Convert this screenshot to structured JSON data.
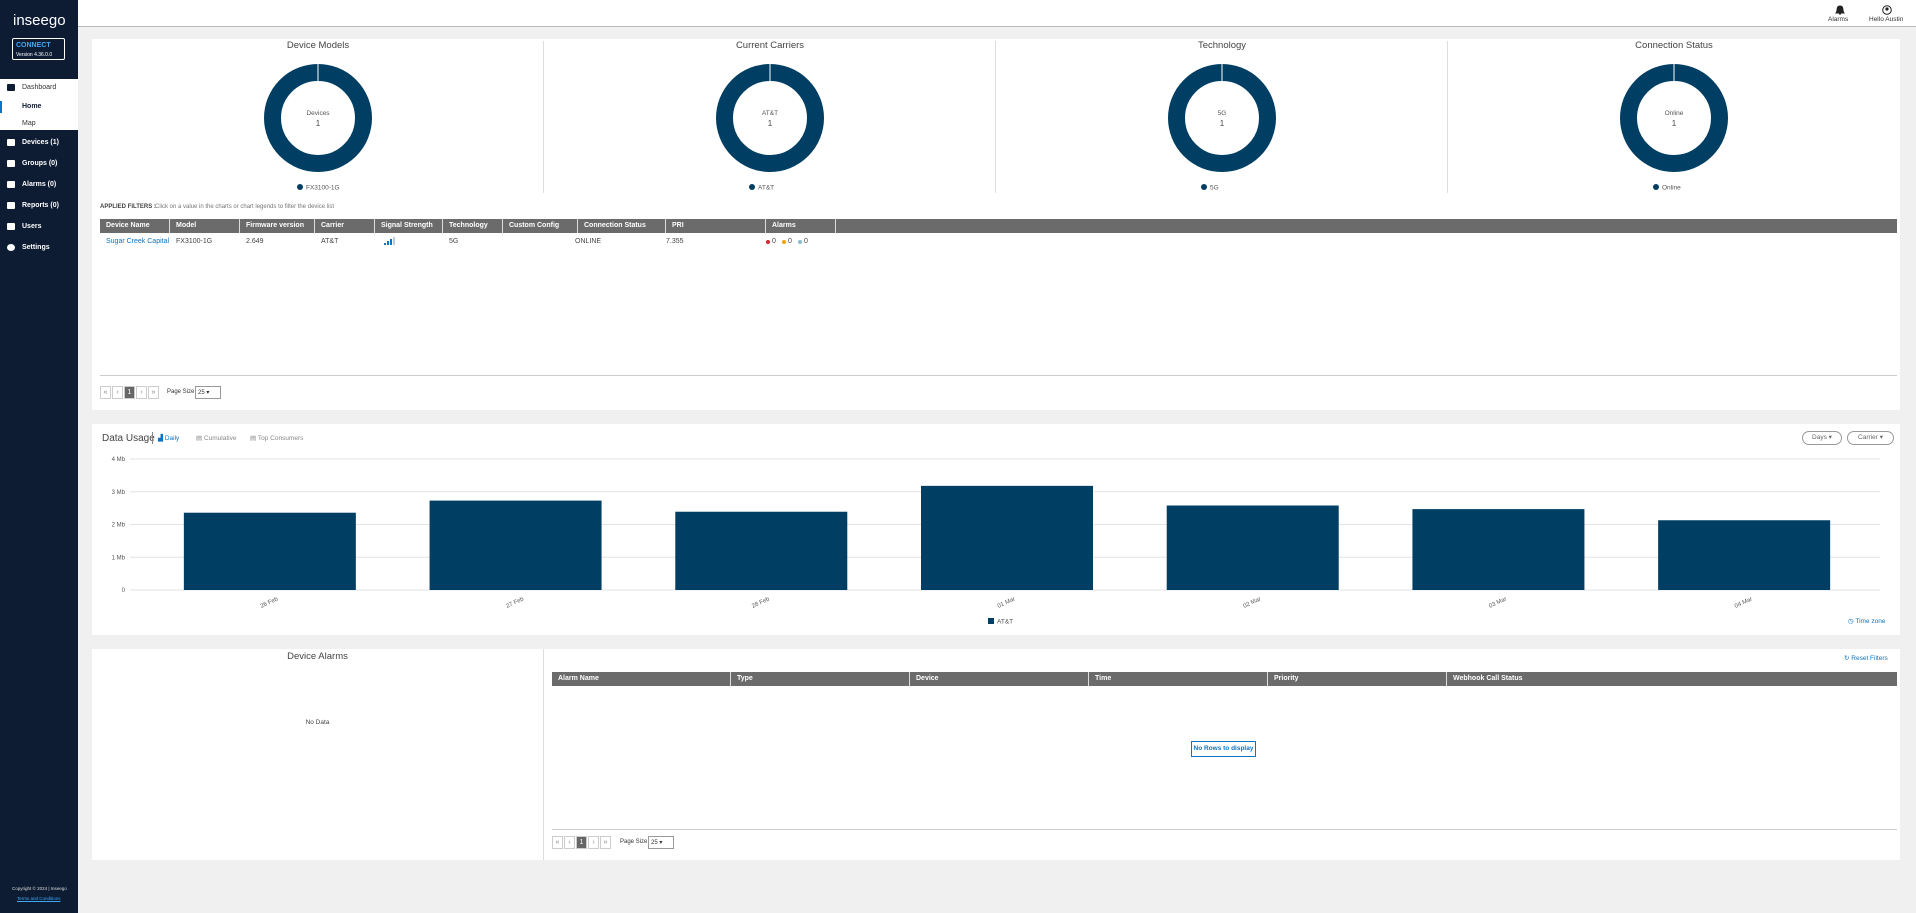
{
  "sidebar": {
    "logo": "inseego",
    "product": "CONNECT",
    "version": "Version 4.36.0.0",
    "nav": [
      "Dashboard",
      "Home",
      "Map",
      "Devices (1)",
      "Groups (0)",
      "Alarms (0)",
      "Reports (0)",
      "Users",
      "Settings"
    ],
    "copyright": "Copyright © 2024 | Inseego",
    "terms": "Terms and Conditions"
  },
  "topbar": {
    "alarms": "Alarms",
    "user": "Hello Austin"
  },
  "chart_data": [
    {
      "type": "pie",
      "title": "Device Models",
      "center_label": "Devices",
      "center_value": 1,
      "categories": [
        "FX3100-1G"
      ],
      "values": [
        1
      ],
      "colors": [
        "#003f63"
      ]
    },
    {
      "type": "pie",
      "title": "Current Carriers",
      "center_label": "AT&T",
      "center_value": 1,
      "categories": [
        "AT&T"
      ],
      "values": [
        1
      ],
      "colors": [
        "#003f63"
      ]
    },
    {
      "type": "pie",
      "title": "Technology",
      "center_label": "5G",
      "center_value": 1,
      "categories": [
        "5G"
      ],
      "values": [
        1
      ],
      "colors": [
        "#003f63"
      ]
    },
    {
      "type": "pie",
      "title": "Connection Status",
      "center_label": "Online",
      "center_value": 1,
      "categories": [
        "Online"
      ],
      "values": [
        1
      ],
      "colors": [
        "#003f63"
      ]
    },
    {
      "type": "bar",
      "title": "Data Usage",
      "categories": [
        "26 Feb",
        "27 Feb",
        "28 Feb",
        "01 Mar",
        "02 Mar",
        "03 Mar",
        "04 Mar"
      ],
      "series": [
        {
          "name": "AT&T",
          "color": "#003f63",
          "values": [
            2.36,
            2.73,
            2.39,
            3.18,
            2.58,
            2.47,
            2.13
          ]
        }
      ],
      "ylim": [
        0,
        4
      ],
      "yticks": [
        0,
        {
          "value": 1,
          "label": "1 Mb"
        },
        {
          "value": 2,
          "label": "2 Mb"
        },
        {
          "value": 3,
          "label": "3 Mb"
        },
        {
          "value": 4,
          "label": "4 Mb"
        }
      ],
      "grid": true
    }
  ],
  "filters": {
    "label": "APPLIED FILTERS :",
    "hint": "Click on a value in the charts or chart legends to filter the device list"
  },
  "device_table": {
    "columns": [
      "Device Name",
      "Model",
      "Firmware version",
      "Carrier",
      "Signal Strength",
      "Technology",
      "Custom Config",
      "Connection Status",
      "PRI",
      "Alarms"
    ],
    "rows": [
      {
        "device_name": "Sugar Creek Capital",
        "model": "FX3100-1G",
        "firmware": "2.649",
        "carrier": "AT&T",
        "technology": "5G",
        "status": "ONLINE",
        "pri": "7.355",
        "alarms": [
          0,
          0,
          0
        ]
      }
    ]
  },
  "pagination": {
    "first": "«",
    "prev": "‹",
    "page": 1,
    "next": "›",
    "last": "»",
    "page_size_label": "Page Size",
    "page_size": 25
  },
  "data_usage_controls": {
    "tabs": [
      "Daily",
      "Cumulative",
      "Top Consumers"
    ],
    "filters": [
      "Days",
      "Carrier"
    ],
    "time_zone": "Time zone"
  },
  "device_alarms": {
    "title": "Device Alarms",
    "empty": "No Data"
  },
  "alarm_table": {
    "columns": [
      "Alarm Name",
      "Type",
      "Device",
      "Time",
      "Priority",
      "Webhook Call Status"
    ],
    "empty": "No Rows to display",
    "reset": "Reset Filters"
  }
}
